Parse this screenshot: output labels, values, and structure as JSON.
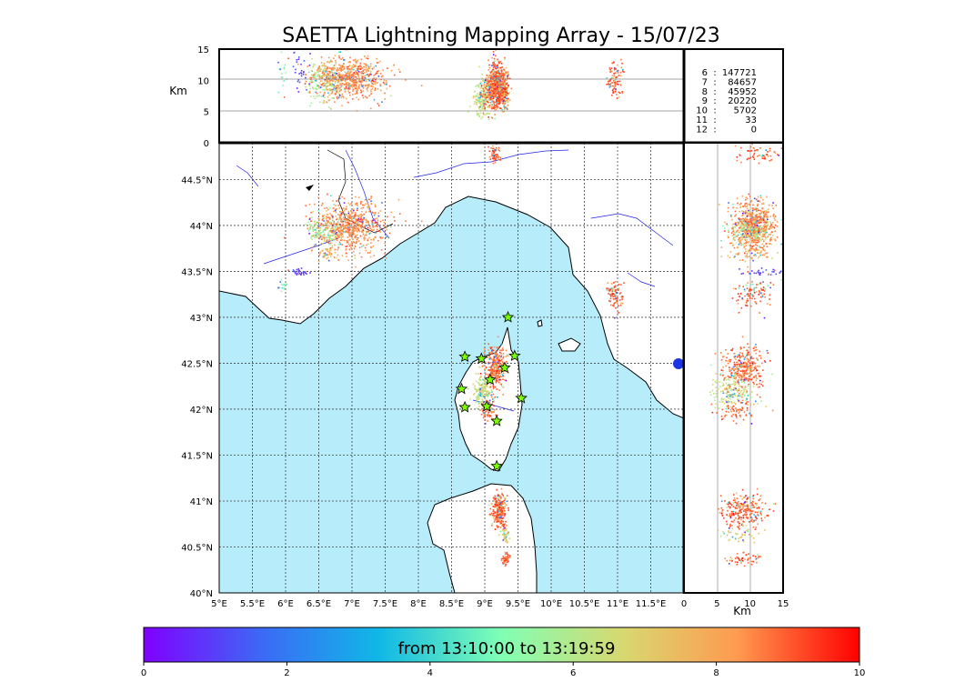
{
  "chart_data": {
    "type": "scatter",
    "title": "SAETTA Lightning Mapping Array - 15/07/23",
    "plan_view": {
      "xlim": [
        5,
        12
      ],
      "ylim": [
        40,
        44.9
      ],
      "x_ticks": [
        "5°E",
        "5.5°E",
        "6°E",
        "6.5°E",
        "7°E",
        "7.5°E",
        "8°E",
        "8.5°E",
        "9°E",
        "9.5°E",
        "10°E",
        "10.5°E",
        "11°E",
        "11.5°E"
      ],
      "y_ticks": [
        "40°N",
        "40.5°N",
        "41°N",
        "41.5°N",
        "42°N",
        "42.5°N",
        "43°N",
        "43.5°N",
        "44°N",
        "44.5°N"
      ],
      "grid": true
    },
    "lon_alt_view": {
      "ylabel": "Km",
      "ylim": [
        0,
        15
      ],
      "y_ticks": [
        "0",
        "5",
        "10",
        "15"
      ]
    },
    "lat_alt_view": {
      "xlabel": "Km",
      "xlim": [
        0,
        15
      ],
      "x_ticks": [
        "0",
        "5",
        "10",
        "15"
      ]
    },
    "station_counts": [
      {
        "stations": "6",
        "sep": ":",
        "count": "147721",
        "color": "#000000"
      },
      {
        "stations": "7",
        "sep": ":",
        "count": "84657",
        "color": "#ff0000"
      },
      {
        "stations": "8",
        "sep": ":",
        "count": "45952",
        "color": "#000000"
      },
      {
        "stations": "9",
        "sep": ":",
        "count": "20220",
        "color": "#000000"
      },
      {
        "stations": "10",
        "sep": ":",
        "count": "5702",
        "color": "#000000"
      },
      {
        "stations": "11",
        "sep": ":",
        "count": "33",
        "color": "#000000"
      },
      {
        "stations": "12",
        "sep": ":",
        "count": "0",
        "color": "#000000"
      }
    ],
    "lightning_clusters": [
      {
        "lon": 6.95,
        "lat": 44.0,
        "alt": 10.5,
        "sx": 0.28,
        "sy": 0.14,
        "n": 700,
        "hue": 0.85
      },
      {
        "lon": 6.55,
        "lat": 43.95,
        "alt": 10.0,
        "sx": 0.12,
        "sy": 0.06,
        "n": 120,
        "hue": 0.6
      },
      {
        "lon": 6.6,
        "lat": 43.7,
        "alt": 10.0,
        "sx": 0.05,
        "sy": 0.04,
        "n": 40,
        "hue": 0.75
      },
      {
        "lon": 6.2,
        "lat": 43.5,
        "alt": 11.5,
        "sx": 0.06,
        "sy": 0.02,
        "n": 30,
        "hue": 0.1
      },
      {
        "lon": 5.95,
        "lat": 43.35,
        "alt": 11.0,
        "sx": 0.04,
        "sy": 0.03,
        "n": 15,
        "hue": 0.5
      },
      {
        "lon": 9.15,
        "lat": 44.78,
        "alt": 11.0,
        "sx": 0.04,
        "sy": 0.05,
        "n": 60,
        "hue": 0.9
      },
      {
        "lon": 10.95,
        "lat": 43.25,
        "alt": 10.0,
        "sx": 0.06,
        "sy": 0.07,
        "n": 90,
        "hue": 0.9
      },
      {
        "lon": 9.15,
        "lat": 42.45,
        "alt": 9.0,
        "sx": 0.08,
        "sy": 0.12,
        "n": 350,
        "hue": 0.88
      },
      {
        "lon": 8.95,
        "lat": 42.2,
        "alt": 7.0,
        "sx": 0.06,
        "sy": 0.08,
        "n": 150,
        "hue": 0.65
      },
      {
        "lon": 9.05,
        "lat": 42.0,
        "alt": 8.0,
        "sx": 0.05,
        "sy": 0.06,
        "n": 80,
        "hue": 0.88
      },
      {
        "lon": 9.2,
        "lat": 40.9,
        "alt": 9.0,
        "sx": 0.05,
        "sy": 0.09,
        "n": 250,
        "hue": 0.9
      },
      {
        "lon": 9.3,
        "lat": 40.65,
        "alt": 8.0,
        "sx": 0.03,
        "sy": 0.04,
        "n": 40,
        "hue": 0.7
      },
      {
        "lon": 9.3,
        "lat": 40.38,
        "alt": 9.0,
        "sx": 0.03,
        "sy": 0.04,
        "n": 50,
        "hue": 0.9
      }
    ],
    "stations": [
      {
        "lon": 9.35,
        "lat": 43.0
      },
      {
        "lon": 8.7,
        "lat": 42.57
      },
      {
        "lon": 8.95,
        "lat": 42.55
      },
      {
        "lon": 9.45,
        "lat": 42.58
      },
      {
        "lon": 9.3,
        "lat": 42.45
      },
      {
        "lon": 9.08,
        "lat": 42.32
      },
      {
        "lon": 8.65,
        "lat": 42.22
      },
      {
        "lon": 9.55,
        "lat": 42.12
      },
      {
        "lon": 8.7,
        "lat": 42.02
      },
      {
        "lon": 9.03,
        "lat": 42.03
      },
      {
        "lon": 9.18,
        "lat": 41.87
      },
      {
        "lon": 9.18,
        "lat": 41.38
      }
    ],
    "colorbar": {
      "label": "from 13:10:00 to 13:19:59",
      "range": [
        0,
        10
      ],
      "ticks": [
        "0",
        "2",
        "4",
        "6",
        "8",
        "10"
      ]
    }
  }
}
